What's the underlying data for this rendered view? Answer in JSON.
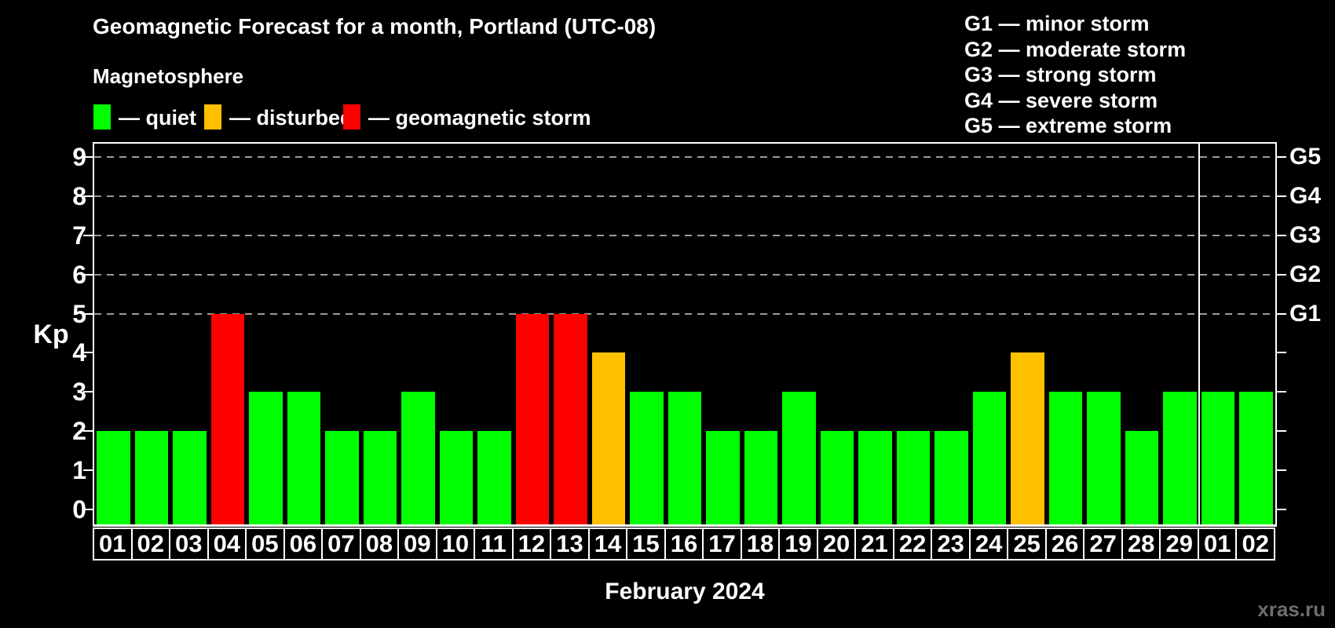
{
  "page": {
    "subtitle": "Magnetosphere",
    "watermark": "xras.ru"
  },
  "legend": {
    "items": [
      {
        "status": "quiet",
        "label": "— quiet",
        "color": "#00FF00"
      },
      {
        "status": "disturbed",
        "label": "— disturbed",
        "color": "#FFC000"
      },
      {
        "status": "storm",
        "label": "— geomagnetic storm",
        "color": "#FF0000"
      }
    ]
  },
  "g_legend": {
    "lines": [
      {
        "code": "G1",
        "desc": "minor storm"
      },
      {
        "code": "G2",
        "desc": "moderate storm"
      },
      {
        "code": "G3",
        "desc": "strong storm"
      },
      {
        "code": "G4",
        "desc": "severe storm"
      },
      {
        "code": "G5",
        "desc": "extreme storm"
      }
    ],
    "separator": " — "
  },
  "chart_data": {
    "type": "bar",
    "title": "Geomagnetic Forecast for a month, Portland (UTC-08)",
    "xlabel": "February 2024",
    "ylabel": "Kp",
    "ylim": [
      0,
      9
    ],
    "y_ticks": [
      0,
      1,
      2,
      3,
      4,
      5,
      6,
      7,
      8,
      9
    ],
    "gridlines_at": [
      5,
      6,
      7,
      8,
      9
    ],
    "grid": "dashed",
    "legend_position": "top",
    "right_axis_labels": [
      {
        "label": "G1",
        "value": 5
      },
      {
        "label": "G2",
        "value": 6
      },
      {
        "label": "G3",
        "value": 7
      },
      {
        "label": "G4",
        "value": 8
      },
      {
        "label": "G5",
        "value": 9
      }
    ],
    "categories": [
      "01",
      "02",
      "03",
      "04",
      "05",
      "06",
      "07",
      "08",
      "09",
      "10",
      "11",
      "12",
      "13",
      "14",
      "15",
      "16",
      "17",
      "18",
      "19",
      "20",
      "21",
      "22",
      "23",
      "24",
      "25",
      "26",
      "27",
      "28",
      "29",
      "01",
      "02"
    ],
    "values": [
      2,
      2,
      2,
      5,
      3,
      3,
      2,
      2,
      3,
      2,
      2,
      5,
      5,
      4,
      3,
      3,
      2,
      2,
      3,
      2,
      2,
      2,
      2,
      3,
      4,
      3,
      3,
      2,
      3,
      3,
      3
    ],
    "statuses": [
      "quiet",
      "quiet",
      "quiet",
      "storm",
      "quiet",
      "quiet",
      "quiet",
      "quiet",
      "quiet",
      "quiet",
      "quiet",
      "storm",
      "storm",
      "disturbed",
      "quiet",
      "quiet",
      "quiet",
      "quiet",
      "quiet",
      "quiet",
      "quiet",
      "quiet",
      "quiet",
      "quiet",
      "disturbed",
      "quiet",
      "quiet",
      "quiet",
      "quiet",
      "quiet",
      "quiet"
    ],
    "color_map": {
      "quiet": "#00FF00",
      "disturbed": "#FFC000",
      "storm": "#FF0000"
    },
    "month_separator_after_index": 28
  }
}
